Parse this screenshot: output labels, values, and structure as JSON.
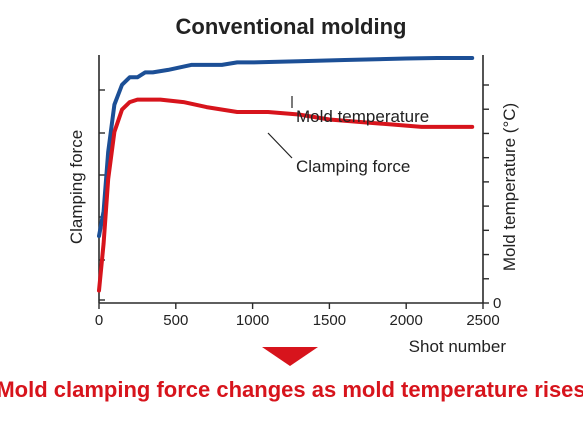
{
  "chart_data": {
    "type": "line",
    "title": "Conventional molding",
    "xlabel": "Shot number",
    "ylabel_left": "Clamping force",
    "ylabel_right": "Mold temperature (°C)",
    "xlim": [
      0,
      2500
    ],
    "xticks": [
      0,
      500,
      1000,
      1500,
      2000,
      2500
    ],
    "ylim": [
      0,
      100
    ],
    "yticks_right": [
      0,
      10,
      20,
      30,
      40,
      50,
      60,
      70,
      80,
      90
    ],
    "yticks_right_labels": [
      "0",
      "",
      "",
      "",
      "",
      "",
      "",
      "",
      "",
      ""
    ],
    "grid": false,
    "legend": "none",
    "series": [
      {
        "name": "Mold temperature",
        "color": "#1c4f96",
        "x": [
          0,
          30,
          60,
          100,
          150,
          200,
          250,
          300,
          350,
          450,
          600,
          800,
          900,
          1000,
          1300,
          1600,
          2000,
          2200,
          2430
        ],
        "y": [
          27,
          37,
          61,
          80,
          88,
          91,
          91,
          93,
          93,
          94,
          96,
          96,
          97,
          97,
          97.5,
          98,
          98.6,
          98.8,
          98.8
        ]
      },
      {
        "name": "Clamping force",
        "color": "#d7141c",
        "x": [
          0,
          30,
          60,
          100,
          150,
          200,
          250,
          300,
          400,
          550,
          700,
          900,
          1100,
          1300,
          1500,
          1700,
          1900,
          2100,
          2300,
          2430
        ],
        "y": [
          5,
          24,
          50,
          69,
          78,
          81,
          82,
          82,
          82,
          81,
          79,
          77,
          77,
          76,
          74,
          73,
          72,
          71,
          71,
          71
        ]
      }
    ],
    "annotations": [
      {
        "text": "Mold temperature",
        "series": "Mold temperature"
      },
      {
        "text": "Clamping force",
        "series": "Clamping force"
      }
    ]
  },
  "caption": {
    "text": "Mold clamping force changes as mold temperature rises",
    "color": "#d7141c"
  },
  "colors": {
    "axis": "#2a2a2a",
    "arrow": "#d7141c",
    "title": "#222222"
  }
}
